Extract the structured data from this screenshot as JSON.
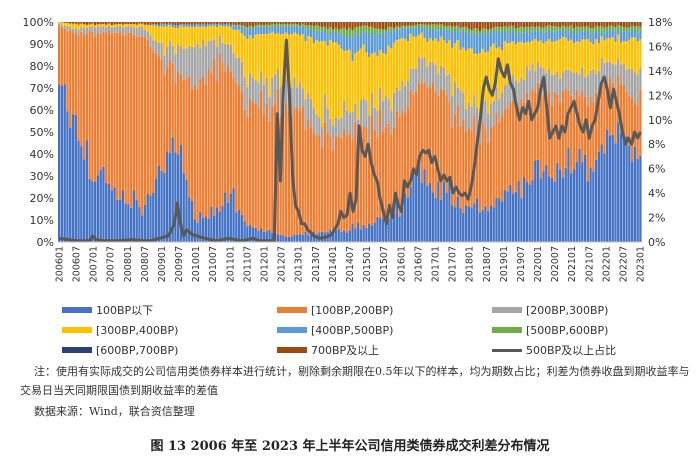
{
  "chart_data": {
    "type": "stacked-bar+line",
    "title": "2006年至2023年上半年公司信用类债券成交利差分布情况",
    "y_left": {
      "min": 0,
      "max": 100,
      "ticks": [
        "0%",
        "10%",
        "20%",
        "30%",
        "40%",
        "50%",
        "60%",
        "70%",
        "80%",
        "90%",
        "100%"
      ]
    },
    "y_right": {
      "min": 0,
      "max": 18,
      "ticks": [
        "0%",
        "2%",
        "4%",
        "6%",
        "8%",
        "10%",
        "12%",
        "14%",
        "16%",
        "18%"
      ]
    },
    "x_tick_labels": [
      "200601",
      "200607",
      "200701",
      "200707",
      "200801",
      "200807",
      "200901",
      "200907",
      "201001",
      "201007",
      "201101",
      "201107",
      "201201",
      "201207",
      "201301",
      "201307",
      "201401",
      "201407",
      "201501",
      "201507",
      "201601",
      "201607",
      "201701",
      "201707",
      "201801",
      "201807",
      "201901",
      "201907",
      "202001",
      "202007",
      "202101",
      "202107",
      "202201",
      "202207",
      "202301"
    ],
    "series": [
      {
        "name": "100BP以下",
        "color": "#4472C4",
        "anchors": [
          72,
          55,
          30,
          25,
          20,
          15,
          35,
          45,
          10,
          15,
          20,
          8,
          5,
          3,
          3,
          4,
          5,
          6,
          8,
          10,
          15,
          30,
          25,
          20,
          15,
          15,
          20,
          25,
          30,
          32,
          35,
          35,
          45,
          50,
          40
        ]
      },
      {
        "name": "[100BP,200BP)",
        "color": "#ED7D31",
        "anchors": [
          26,
          40,
          65,
          70,
          75,
          78,
          45,
          35,
          60,
          65,
          60,
          52,
          55,
          60,
          58,
          45,
          40,
          45,
          45,
          45,
          40,
          45,
          45,
          40,
          35,
          35,
          40,
          40,
          38,
          35,
          32,
          30,
          25,
          20,
          25
        ]
      },
      {
        "name": "[200BP,300BP)",
        "color": "#A5A5A5",
        "anchors": [
          1,
          2,
          3,
          3,
          3,
          4,
          8,
          10,
          18,
          12,
          10,
          15,
          10,
          12,
          12,
          12,
          10,
          10,
          12,
          12,
          12,
          10,
          10,
          12,
          12,
          12,
          10,
          12,
          12,
          10,
          10,
          12,
          10,
          10,
          12
        ]
      },
      {
        "name": "[300BP,400BP)",
        "color": "#FFC000",
        "anchors": [
          1,
          2,
          1,
          1,
          1,
          2,
          10,
          8,
          10,
          6,
          8,
          18,
          25,
          20,
          22,
          30,
          35,
          25,
          22,
          20,
          25,
          10,
          12,
          18,
          25,
          25,
          20,
          15,
          12,
          15,
          15,
          15,
          12,
          12,
          15
        ]
      },
      {
        "name": "[400BP,500BP)",
        "color": "#5B9BD5",
        "anchors": [
          0,
          0,
          0,
          0,
          0,
          0,
          1,
          1,
          1,
          1,
          1,
          4,
          3,
          3,
          3,
          5,
          5,
          8,
          8,
          8,
          5,
          3,
          5,
          6,
          8,
          8,
          6,
          4,
          4,
          4,
          4,
          4,
          4,
          4,
          4
        ]
      },
      {
        "name": "[500BP,600BP)",
        "color": "#70AD47",
        "anchors": [
          0,
          0,
          0,
          0,
          0,
          0,
          0,
          0,
          0,
          0,
          0,
          1,
          1,
          1,
          1,
          2,
          2,
          3,
          3,
          2,
          1,
          1,
          2,
          2,
          2,
          2,
          2,
          2,
          2,
          2,
          2,
          2,
          2,
          2,
          2
        ]
      },
      {
        "name": "[600BP,700BP)",
        "color": "#264478",
        "anchors": [
          0,
          0,
          0,
          0,
          0,
          0,
          0,
          0,
          0,
          0,
          0,
          0,
          0,
          0,
          0,
          0,
          0,
          0,
          0,
          0,
          0,
          0,
          0,
          0,
          0,
          0,
          0,
          0,
          0,
          0,
          0,
          0,
          0,
          0,
          0
        ]
      },
      {
        "name": "700BP及以上",
        "color": "#9E480E",
        "anchors": [
          0,
          1,
          1,
          1,
          1,
          1,
          1,
          1,
          1,
          1,
          1,
          2,
          1,
          1,
          1,
          2,
          3,
          3,
          2,
          3,
          2,
          1,
          1,
          2,
          3,
          3,
          2,
          2,
          2,
          2,
          2,
          2,
          2,
          2,
          2
        ]
      }
    ],
    "line": {
      "name": "500BP及以上占比",
      "color": "#595959",
      "points": [
        [
          0,
          0.3
        ],
        [
          3,
          0.2
        ],
        [
          6,
          0.1
        ],
        [
          10,
          0.1
        ],
        [
          11,
          0.5
        ],
        [
          12,
          0.2
        ],
        [
          15,
          0.1
        ],
        [
          20,
          0.1
        ],
        [
          24,
          0.2
        ],
        [
          28,
          0.1
        ],
        [
          30,
          0.1
        ],
        [
          33,
          0.3
        ],
        [
          36,
          0.5
        ],
        [
          38,
          1.5
        ],
        [
          39,
          3.2
        ],
        [
          40,
          1.5
        ],
        [
          41,
          0.5
        ],
        [
          42,
          1.0
        ],
        [
          44,
          0.6
        ],
        [
          48,
          0.3
        ],
        [
          52,
          0.1
        ],
        [
          56,
          0.3
        ],
        [
          60,
          0.1
        ],
        [
          64,
          0.3
        ],
        [
          66,
          0.1
        ],
        [
          70,
          0.1
        ],
        [
          71,
          0.1
        ],
        [
          72,
          10.5
        ],
        [
          73,
          5.0
        ],
        [
          74,
          12.5
        ],
        [
          75,
          16.5
        ],
        [
          76,
          12.0
        ],
        [
          77,
          5.5
        ],
        [
          78,
          3.0
        ],
        [
          79,
          2.5
        ],
        [
          80,
          1.5
        ],
        [
          81,
          1.5
        ],
        [
          82,
          1.0
        ],
        [
          83,
          0.8
        ],
        [
          84,
          0.5
        ],
        [
          86,
          0.3
        ],
        [
          88,
          0.4
        ],
        [
          90,
          0.6
        ],
        [
          92,
          1.5
        ],
        [
          93,
          2.5
        ],
        [
          94,
          2.0
        ],
        [
          95,
          2.2
        ],
        [
          96,
          4.0
        ],
        [
          97,
          2.5
        ],
        [
          98,
          3.5
        ],
        [
          99,
          9.5
        ],
        [
          100,
          7.5
        ],
        [
          101,
          7.0
        ],
        [
          102,
          8.0
        ],
        [
          103,
          6.5
        ],
        [
          104,
          5.5
        ],
        [
          105,
          5.0
        ],
        [
          106,
          3.5
        ],
        [
          107,
          2.5
        ],
        [
          108,
          1.5
        ],
        [
          109,
          3.0
        ],
        [
          110,
          2.0
        ],
        [
          111,
          4.0
        ],
        [
          112,
          3.0
        ],
        [
          113,
          2.5
        ],
        [
          114,
          5.0
        ],
        [
          115,
          4.5
        ],
        [
          116,
          5.0
        ],
        [
          117,
          6.0
        ],
        [
          118,
          5.5
        ],
        [
          119,
          7.0
        ],
        [
          120,
          7.5
        ],
        [
          121,
          7.3
        ],
        [
          122,
          7.5
        ],
        [
          123,
          6.5
        ],
        [
          124,
          7.0
        ],
        [
          125,
          6.0
        ],
        [
          126,
          5.0
        ],
        [
          127,
          5.5
        ],
        [
          128,
          5.0
        ],
        [
          129,
          5.3
        ],
        [
          130,
          4.0
        ],
        [
          131,
          4.5
        ],
        [
          132,
          4.0
        ],
        [
          133,
          3.8
        ],
        [
          134,
          4.0
        ],
        [
          135,
          3.5
        ],
        [
          136,
          4.5
        ],
        [
          137,
          6.0
        ],
        [
          138,
          8.0
        ],
        [
          139,
          10.0
        ],
        [
          140,
          12.5
        ],
        [
          141,
          13.5
        ],
        [
          142,
          12.5
        ],
        [
          143,
          12.0
        ],
        [
          144,
          13.0
        ],
        [
          145,
          15.0
        ],
        [
          146,
          14.0
        ],
        [
          147,
          13.5
        ],
        [
          148,
          14.5
        ],
        [
          149,
          13.0
        ],
        [
          150,
          12.5
        ],
        [
          151,
          11.0
        ],
        [
          152,
          10.0
        ],
        [
          153,
          11.0
        ],
        [
          154,
          10.5
        ],
        [
          155,
          11.5
        ],
        [
          156,
          10.0
        ],
        [
          157,
          10.5
        ],
        [
          158,
          11.0
        ],
        [
          159,
          12.5
        ],
        [
          160,
          13.5
        ],
        [
          161,
          11.0
        ],
        [
          162,
          8.5
        ],
        [
          163,
          9.0
        ],
        [
          164,
          9.5
        ],
        [
          165,
          8.5
        ],
        [
          166,
          9.5
        ],
        [
          167,
          9.0
        ],
        [
          168,
          10.5
        ],
        [
          169,
          11.0
        ],
        [
          170,
          11.5
        ],
        [
          171,
          10.5
        ],
        [
          172,
          9.5
        ],
        [
          173,
          9.0
        ],
        [
          174,
          10.0
        ],
        [
          175,
          8.5
        ],
        [
          176,
          9.5
        ],
        [
          177,
          10.0
        ],
        [
          178,
          11.5
        ],
        [
          179,
          13.0
        ],
        [
          180,
          13.5
        ],
        [
          181,
          12.5
        ],
        [
          182,
          11.0
        ],
        [
          183,
          12.5
        ],
        [
          184,
          11.5
        ],
        [
          185,
          10.5
        ],
        [
          186,
          9.0
        ],
        [
          187,
          8.0
        ],
        [
          188,
          8.5
        ],
        [
          189,
          8.0
        ],
        [
          190,
          9.0
        ],
        [
          191,
          8.5
        ],
        [
          192,
          9.0
        ]
      ]
    }
  },
  "legend": {
    "rows": [
      [
        "100BP以下",
        "[100BP,200BP)",
        "[200BP,300BP)"
      ],
      [
        "[300BP,400BP)",
        "[400BP,500BP)",
        "[500BP,600BP)"
      ],
      [
        "[600BP,700BP)",
        "700BP及以上",
        "500BP及以上占比"
      ]
    ]
  },
  "notes": {
    "note": "注：使用有实际成交的公司信用类债券样本进行统计，剔除剩余期限在0.5年以下的样本，均为期数占比；利差为债券收盘到期收益率与交易日当天同期限国债到期收益率的差值",
    "source": "数据来源：Wind，联合资信整理",
    "caption": "图 13   2006 年至 2023 年上半年公司信用类债券成交利差分布情况"
  }
}
